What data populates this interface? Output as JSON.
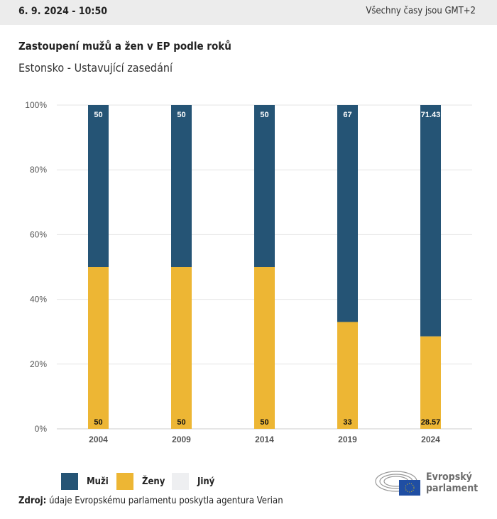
{
  "header": {
    "date": "6. 9. 2024 - 10:50",
    "timezone": "Všechny časy jsou GMT+2"
  },
  "title": "Zastoupení mužů a žen v EP podle roků",
  "subtitle": "Estonsko - Ustavující zasedání",
  "chart_data": {
    "type": "bar",
    "stacked": true,
    "categories": [
      "2004",
      "2009",
      "2014",
      "2019",
      "2024"
    ],
    "series": [
      {
        "name": "Muži",
        "color": "#255475",
        "values": [
          50,
          50,
          50,
          67,
          71.43
        ]
      },
      {
        "name": "Ženy",
        "color": "#edb634",
        "values": [
          50,
          50,
          50,
          33,
          28.57
        ]
      },
      {
        "name": "Jiný",
        "color": "#eeeff1",
        "values": [
          0,
          0,
          0,
          0,
          0
        ]
      }
    ],
    "yticks": [
      "0%",
      "20%",
      "40%",
      "60%",
      "80%",
      "100%"
    ],
    "ylim": [
      0,
      100
    ],
    "grid": true,
    "legend": "bottom-left"
  },
  "source": {
    "label": "Zdroj:",
    "text": "údaje Evropskému parlamentu poskytla agentura Verian"
  },
  "logo": {
    "line1": "Evropský",
    "line2": "parlament"
  }
}
